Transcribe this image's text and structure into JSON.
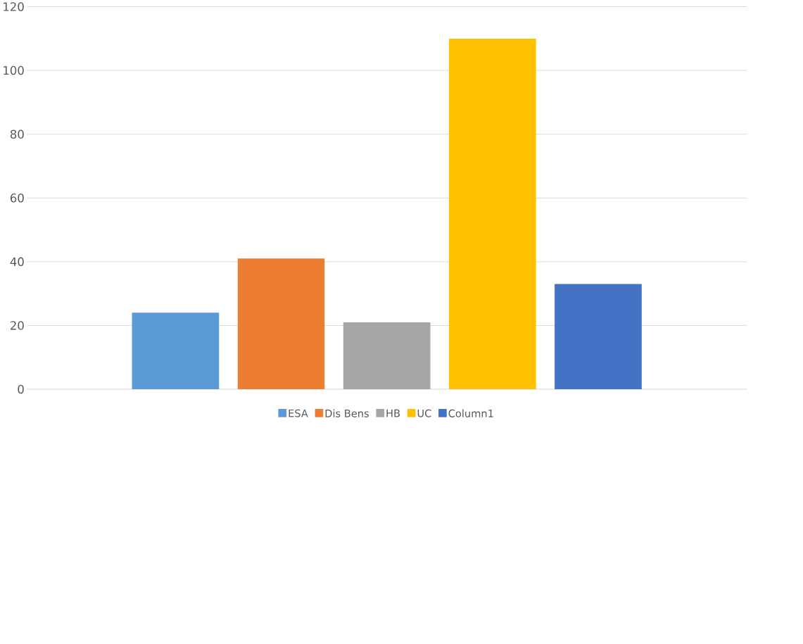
{
  "chart_data": {
    "type": "bar",
    "categories": [
      null
    ],
    "series": [
      {
        "name": "ESA",
        "color": "#5b9bd5",
        "values": [
          24
        ]
      },
      {
        "name": "Dis Bens",
        "color": "#ed7d31",
        "values": [
          41
        ]
      },
      {
        "name": "HB",
        "color": "#a5a5a5",
        "values": [
          21
        ]
      },
      {
        "name": "UC",
        "color": "#ffc000",
        "values": [
          110
        ]
      },
      {
        "name": "Column1",
        "color": "#4472c4",
        "values": [
          33
        ]
      }
    ],
    "ylim": [
      0,
      120
    ],
    "yticks": [
      0,
      20,
      40,
      60,
      80,
      100,
      120
    ],
    "grid": "y",
    "legend": "bottom"
  }
}
